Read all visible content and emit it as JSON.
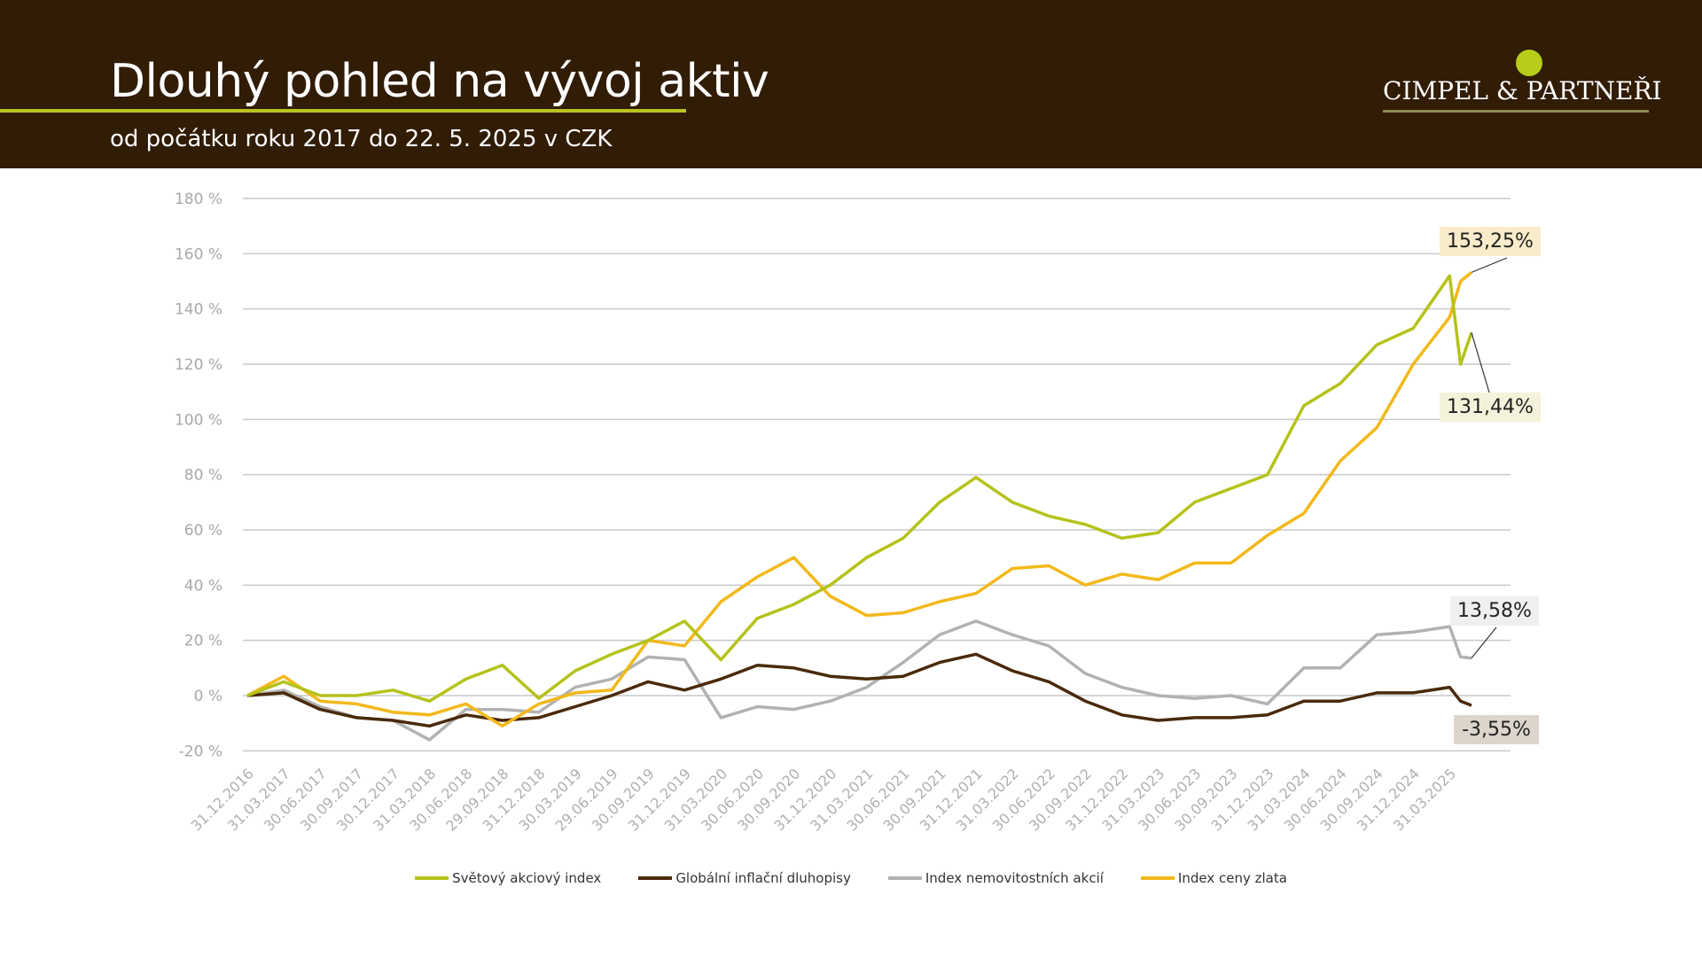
{
  "header": {
    "title": "Dlouhý pohled na vývoj aktiv",
    "subtitle": "od počátku roku 2017 do 22. 5. 2025 v CZK",
    "logo_text": "CIMPEL & PARTNEŘI"
  },
  "colors": {
    "world": "#b5c21a",
    "bonds": "#4a2a0b",
    "realestate": "#b2b2b2",
    "gold": "#f2b91b",
    "header": "#311c06"
  },
  "callouts": {
    "gold_end": "153,25%",
    "world_end": "131,44%",
    "realestate_end": "13,58%",
    "bonds_end": "-3,55%"
  },
  "chart_data": {
    "type": "line",
    "title": "Dlouhý pohled na vývoj aktiv",
    "xlabel": "",
    "ylabel": "",
    "ylim": [
      -20,
      180
    ],
    "yticks": [
      -20,
      0,
      20,
      40,
      60,
      80,
      100,
      120,
      140,
      160,
      180
    ],
    "ytick_labels": [
      "-20 %",
      "0 %",
      "20 %",
      "40 %",
      "60 %",
      "80 %",
      "100 %",
      "120 %",
      "140 %",
      "160 %",
      "180 %"
    ],
    "x_tick_labels": [
      "31.12.2016",
      "31.03.2017",
      "30.06.2017",
      "30.09.2017",
      "30.12.2017",
      "31.03.2018",
      "30.06.2018",
      "29.09.2018",
      "31.12.2018",
      "30.03.2019",
      "29.06.2019",
      "30.09.2019",
      "31.12.2019",
      "31.03.2020",
      "30.06.2020",
      "30.09.2020",
      "31.12.2020",
      "31.03.2021",
      "30.06.2021",
      "30.09.2021",
      "31.12.2021",
      "31.03.2022",
      "30.06.2022",
      "30.09.2022",
      "31.12.2022",
      "31.03.2023",
      "30.06.2023",
      "30.09.2023",
      "31.12.2023",
      "31.03.2024",
      "30.06.2024",
      "30.09.2024",
      "31.12.2024",
      "31.03.2025"
    ],
    "x": [
      0,
      1,
      2,
      3,
      4,
      5,
      6,
      7,
      8,
      9,
      10,
      11,
      12,
      13,
      14,
      15,
      16,
      17,
      18,
      19,
      20,
      21,
      22,
      23,
      24,
      25,
      26,
      27,
      28,
      29,
      30,
      31,
      32,
      33,
      33.3,
      33.6
    ],
    "grid": true,
    "legend_position": "bottom",
    "series": [
      {
        "key": "world",
        "name": "Světový akciový index",
        "values": [
          0,
          5,
          0,
          0,
          2,
          -2,
          6,
          11,
          -1,
          9,
          15,
          20,
          27,
          13,
          28,
          33,
          40,
          50,
          57,
          70,
          79,
          70,
          65,
          62,
          57,
          59,
          70,
          75,
          80,
          105,
          113,
          127,
          133,
          152,
          120,
          131.44
        ]
      },
      {
        "key": "bonds",
        "name": "Globální inflační dluhopisy",
        "values": [
          0,
          1,
          -5,
          -8,
          -9,
          -11,
          -7,
          -9,
          -8,
          -4,
          0,
          5,
          2,
          6,
          11,
          10,
          7,
          6,
          7,
          12,
          15,
          9,
          5,
          -2,
          -7,
          -9,
          -8,
          -8,
          -7,
          -2,
          -2,
          1,
          1,
          3,
          -2,
          -3.55
        ]
      },
      {
        "key": "realestate",
        "name": "Index nemovitostních akcií",
        "values": [
          0,
          2,
          -4,
          -8,
          -9,
          -16,
          -5,
          -5,
          -6,
          3,
          6,
          14,
          13,
          -8,
          -4,
          -5,
          -2,
          3,
          12,
          22,
          27,
          22,
          18,
          8,
          3,
          0,
          -1,
          0,
          -3,
          10,
          10,
          22,
          23,
          25,
          14,
          13.58
        ]
      },
      {
        "key": "gold",
        "name": "Index ceny zlata",
        "values": [
          0,
          7,
          -2,
          -3,
          -6,
          -7,
          -3,
          -11,
          -3,
          1,
          2,
          20,
          18,
          34,
          43,
          50,
          36,
          29,
          30,
          34,
          37,
          46,
          47,
          40,
          44,
          42,
          48,
          48,
          58,
          66,
          85,
          97,
          120,
          137,
          150,
          153.25
        ]
      }
    ]
  }
}
